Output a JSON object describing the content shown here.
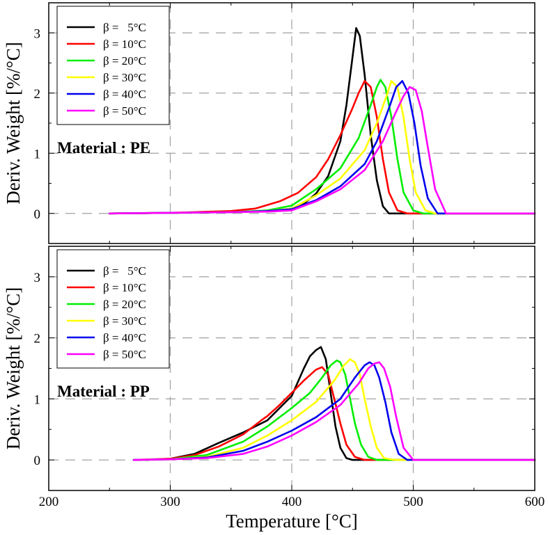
{
  "colors": {
    "series": [
      "#000000",
      "#ff0000",
      "#00ee00",
      "#ffff00",
      "#0000ee",
      "#ff00ff"
    ],
    "grid": "#a0a0a0",
    "frame": "#000000"
  },
  "chart_data": [
    {
      "type": "line",
      "panel": "top",
      "annotation": "Material : PE",
      "ylabel": "Deriv. Weight [%/°C]",
      "xlabel": "",
      "xlim": [
        200,
        600
      ],
      "ylim": [
        -0.5,
        3.5
      ],
      "xticks": [
        200,
        300,
        400,
        500,
        600
      ],
      "yticks": [
        0,
        1,
        2,
        3
      ],
      "grid": true,
      "legend_position": "top-left",
      "series": [
        {
          "name": "β =   5°C",
          "x": [
            250,
            300,
            350,
            380,
            400,
            410,
            420,
            430,
            440,
            445,
            450,
            453,
            456,
            460,
            465,
            470,
            475,
            480,
            600
          ],
          "y": [
            0,
            0.01,
            0.02,
            0.04,
            0.08,
            0.16,
            0.33,
            0.62,
            1.2,
            1.8,
            2.6,
            3.08,
            2.95,
            2.3,
            1.3,
            0.55,
            0.12,
            0,
            0
          ]
        },
        {
          "name": "β = 10°C",
          "x": [
            250,
            300,
            350,
            370,
            390,
            405,
            420,
            430,
            440,
            450,
            455,
            460,
            465,
            470,
            475,
            480,
            487,
            495,
            600
          ],
          "y": [
            0,
            0.01,
            0.04,
            0.08,
            0.2,
            0.34,
            0.6,
            0.9,
            1.3,
            1.75,
            2.0,
            2.2,
            2.1,
            1.6,
            0.9,
            0.35,
            0.05,
            0,
            0
          ]
        },
        {
          "name": "β = 20°C",
          "x": [
            250,
            300,
            350,
            380,
            400,
            420,
            440,
            455,
            465,
            470,
            473,
            477,
            482,
            487,
            492,
            500,
            508,
            600
          ],
          "y": [
            0,
            0.01,
            0.02,
            0.05,
            0.13,
            0.4,
            0.75,
            1.25,
            1.8,
            2.1,
            2.22,
            2.1,
            1.6,
            0.9,
            0.35,
            0.05,
            0,
            0
          ]
        },
        {
          "name": "β = 30°C",
          "x": [
            250,
            300,
            350,
            380,
            400,
            420,
            440,
            460,
            470,
            478,
            482,
            487,
            492,
            497,
            502,
            510,
            518,
            600
          ],
          "y": [
            0,
            0.01,
            0.02,
            0.04,
            0.08,
            0.3,
            0.58,
            1.05,
            1.5,
            1.95,
            2.2,
            2.1,
            1.6,
            0.9,
            0.35,
            0.05,
            0,
            0
          ]
        },
        {
          "name": "β = 40°C",
          "x": [
            250,
            300,
            350,
            380,
            400,
            420,
            440,
            460,
            470,
            480,
            486,
            491,
            496,
            501,
            506,
            512,
            520,
            600
          ],
          "y": [
            0,
            0.01,
            0.02,
            0.04,
            0.07,
            0.22,
            0.45,
            0.82,
            1.2,
            1.75,
            2.1,
            2.2,
            2.0,
            1.5,
            0.8,
            0.25,
            0,
            0
          ]
        },
        {
          "name": "β = 50°C",
          "x": [
            250,
            300,
            350,
            380,
            400,
            420,
            440,
            460,
            475,
            485,
            492,
            497,
            502,
            507,
            512,
            518,
            527,
            600
          ],
          "y": [
            0,
            0.01,
            0.02,
            0.03,
            0.05,
            0.2,
            0.4,
            0.72,
            1.2,
            1.65,
            1.95,
            2.1,
            2.05,
            1.7,
            1.1,
            0.4,
            0,
            0
          ]
        }
      ]
    },
    {
      "type": "line",
      "panel": "bottom",
      "annotation": "Material : PP",
      "ylabel": "Deriv. Weight [%/°C]",
      "xlabel": "Temperature [°C]",
      "xlim": [
        200,
        600
      ],
      "ylim": [
        -0.5,
        3.5
      ],
      "xticks": [
        200,
        300,
        400,
        500,
        600
      ],
      "yticks": [
        0,
        1,
        2,
        3
      ],
      "grid": true,
      "legend_position": "top-left",
      "series": [
        {
          "name": "β =   5°C",
          "x": [
            280,
            300,
            320,
            340,
            360,
            380,
            400,
            410,
            415,
            420,
            424,
            428,
            432,
            436,
            440,
            445,
            450,
            600
          ],
          "y": [
            0,
            0.02,
            0.1,
            0.28,
            0.45,
            0.65,
            1.05,
            1.5,
            1.7,
            1.8,
            1.85,
            1.65,
            1.1,
            0.55,
            0.2,
            0.03,
            0,
            0
          ]
        },
        {
          "name": "β = 10°C",
          "x": [
            270,
            300,
            320,
            340,
            360,
            375,
            380,
            390,
            400,
            410,
            420,
            425,
            430,
            435,
            440,
            445,
            452,
            460,
            600
          ],
          "y": [
            0,
            0.02,
            0.08,
            0.22,
            0.42,
            0.65,
            0.72,
            0.9,
            1.1,
            1.3,
            1.48,
            1.52,
            1.4,
            1.0,
            0.6,
            0.25,
            0.05,
            0,
            0
          ]
        },
        {
          "name": "β = 20°C",
          "x": [
            270,
            300,
            330,
            360,
            380,
            400,
            415,
            425,
            432,
            437,
            440,
            444,
            448,
            452,
            457,
            463,
            470,
            600
          ],
          "y": [
            0,
            0.01,
            0.08,
            0.3,
            0.55,
            0.85,
            1.1,
            1.35,
            1.55,
            1.63,
            1.6,
            1.4,
            1.0,
            0.6,
            0.25,
            0.05,
            0,
            0
          ]
        },
        {
          "name": "β = 30°C",
          "x": [
            270,
            300,
            330,
            360,
            380,
            400,
            420,
            435,
            443,
            448,
            452,
            456,
            460,
            465,
            470,
            476,
            485,
            600
          ],
          "y": [
            0,
            0.01,
            0.05,
            0.2,
            0.4,
            0.65,
            0.95,
            1.3,
            1.55,
            1.65,
            1.6,
            1.4,
            1.0,
            0.55,
            0.2,
            0.03,
            0,
            0
          ]
        },
        {
          "name": "β = 40°C",
          "x": [
            270,
            300,
            330,
            360,
            380,
            400,
            420,
            440,
            452,
            460,
            464,
            468,
            472,
            477,
            482,
            488,
            495,
            600
          ],
          "y": [
            0,
            0.01,
            0.04,
            0.15,
            0.3,
            0.48,
            0.7,
            1.0,
            1.35,
            1.55,
            1.6,
            1.55,
            1.35,
            0.95,
            0.45,
            0.1,
            0,
            0
          ]
        },
        {
          "name": "β = 50°C",
          "x": [
            270,
            300,
            330,
            360,
            380,
            400,
            420,
            440,
            455,
            463,
            468,
            472,
            476,
            481,
            486,
            492,
            500,
            600
          ],
          "y": [
            0,
            0.01,
            0.03,
            0.1,
            0.22,
            0.4,
            0.62,
            0.9,
            1.25,
            1.5,
            1.58,
            1.6,
            1.5,
            1.2,
            0.7,
            0.2,
            0,
            0
          ]
        }
      ]
    }
  ]
}
